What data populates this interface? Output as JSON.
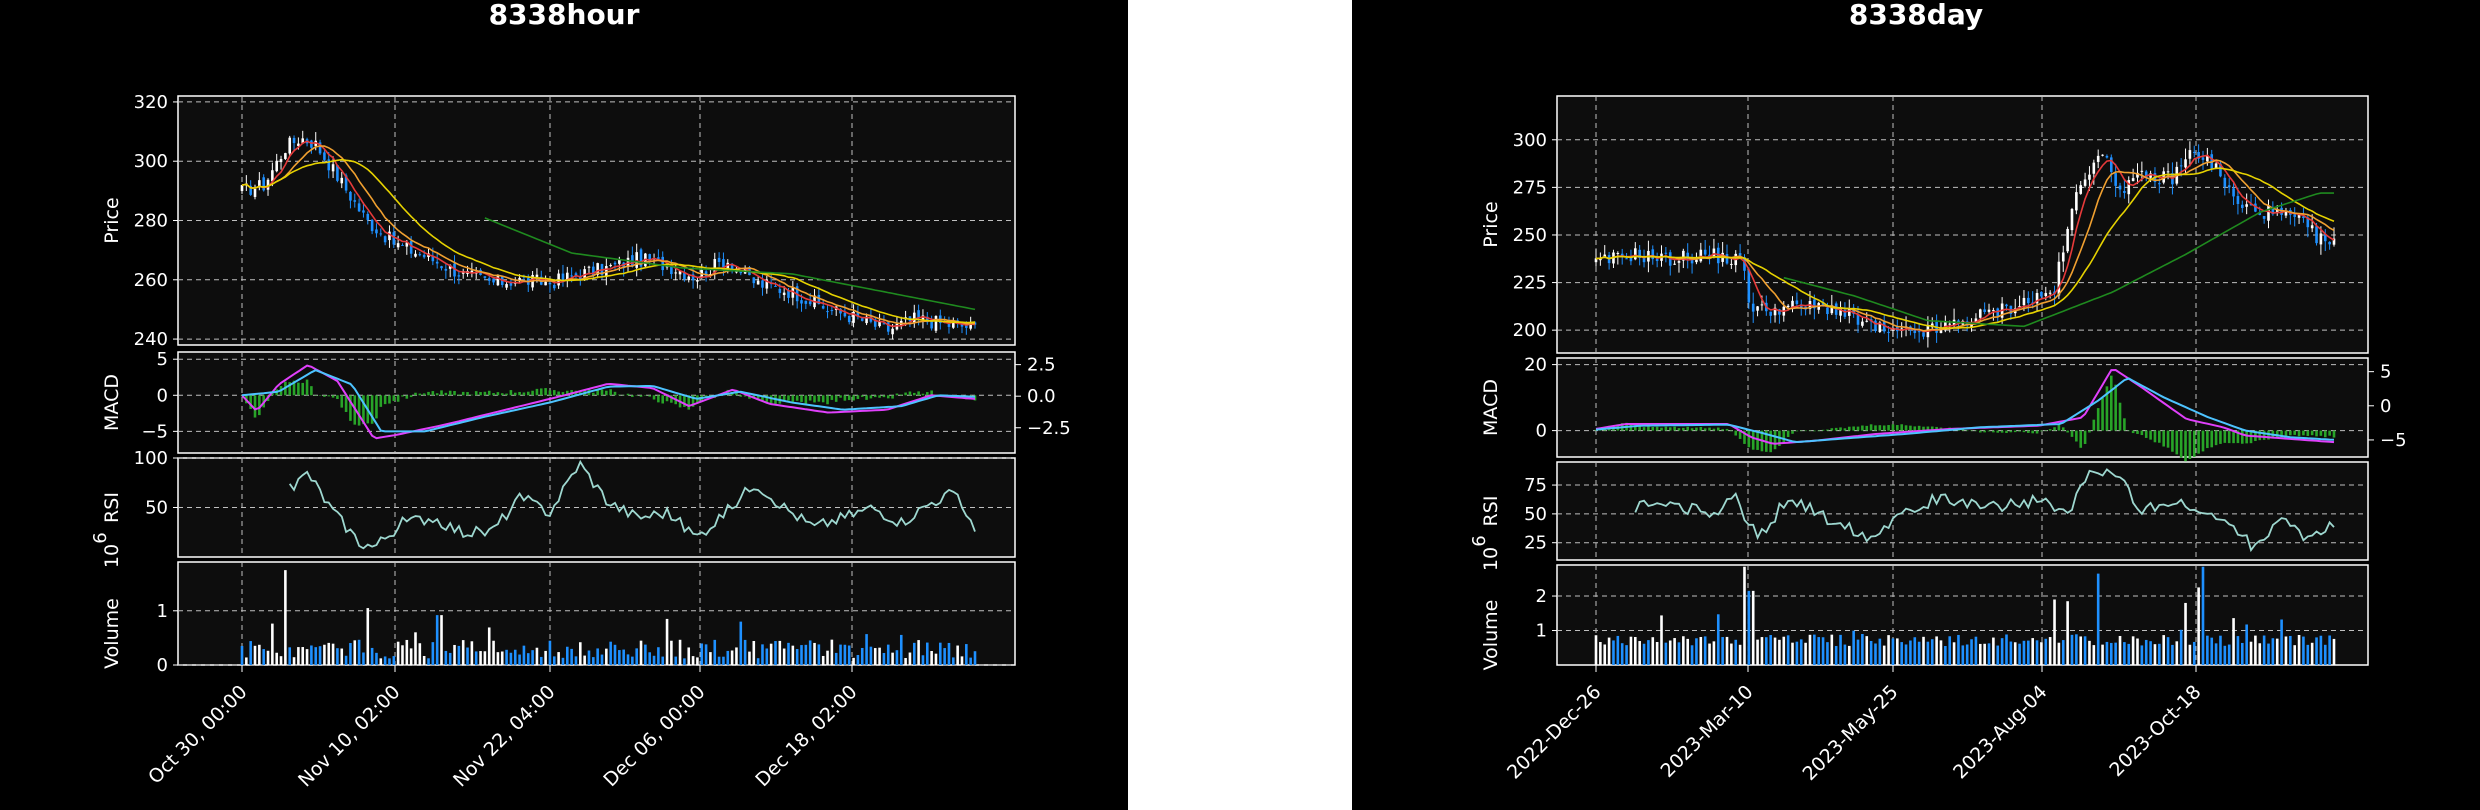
{
  "colors": {
    "page_bg": "#ffffff",
    "figure_bg": "#000000",
    "panel_bg": "#0d0d0d",
    "axis": "#ffffff",
    "grid": "#bfbfbf",
    "candle_up": "#ffffff",
    "candle_down": "#1e90ff",
    "ma_short": "#e63a3a",
    "ma_mid": "#f0a030",
    "ma_long": "#e6d200",
    "ma_trend": "#1f8a1f",
    "macd_line": "#e040fb",
    "signal_line": "#4dc3ff",
    "hist_pos": "#28a428",
    "rsi_line": "#9ed8d0"
  },
  "chart_data": [
    {
      "type": "candlestick",
      "title": "8338hour",
      "x_tick_labels": [
        "Oct 30, 00:00",
        "Nov 10, 02:00",
        "Nov 22, 04:00",
        "Dec 06, 00:00",
        "Dec 18, 02:00"
      ],
      "grid": true,
      "moving_averages": [
        "short",
        "mid",
        "long",
        "trend"
      ],
      "panels": {
        "price": {
          "ylabel": "Price",
          "ylim": [
            238,
            322
          ],
          "y_ticks": [
            "240",
            "260",
            "280",
            "300",
            "320"
          ],
          "close_anchors": [
            [
              0,
              290
            ],
            [
              0.03,
              292
            ],
            [
              0.06,
              305
            ],
            [
              0.08,
              308
            ],
            [
              0.1,
              306
            ],
            [
              0.13,
              295
            ],
            [
              0.17,
              280
            ],
            [
              0.21,
              272
            ],
            [
              0.25,
              268
            ],
            [
              0.3,
              262
            ],
            [
              0.34,
              259
            ],
            [
              0.38,
              260
            ],
            [
              0.42,
              259
            ],
            [
              0.46,
              262
            ],
            [
              0.5,
              264
            ],
            [
              0.54,
              267
            ],
            [
              0.58,
              265
            ],
            [
              0.62,
              261
            ],
            [
              0.66,
              267
            ],
            [
              0.7,
              259
            ],
            [
              0.75,
              256
            ],
            [
              0.8,
              250
            ],
            [
              0.84,
              247
            ],
            [
              0.88,
              243
            ],
            [
              0.92,
              247
            ],
            [
              0.96,
              245
            ],
            [
              1.0,
              244
            ]
          ],
          "trend_ma_anchors": [
            [
              0.33,
              281
            ],
            [
              0.45,
              269
            ],
            [
              0.6,
              264
            ],
            [
              0.75,
              262
            ],
            [
              1.0,
              250
            ]
          ]
        },
        "macd": {
          "ylabel": "MACD",
          "ylim": [
            -8,
            6
          ],
          "y_ticks_left": [
            "5",
            "0",
            "−5"
          ],
          "y_ticks_right": [
            "2.5",
            "0.0",
            "−2.5"
          ],
          "macd_anchors": [
            [
              0,
              0
            ],
            [
              0.02,
              -2.2
            ],
            [
              0.05,
              1.5
            ],
            [
              0.09,
              4.2
            ],
            [
              0.13,
              2
            ],
            [
              0.18,
              -6
            ],
            [
              0.21,
              -5.5
            ],
            [
              0.28,
              -4
            ],
            [
              0.36,
              -2
            ],
            [
              0.44,
              0
            ],
            [
              0.5,
              1.6
            ],
            [
              0.56,
              1.0
            ],
            [
              0.61,
              -1.5
            ],
            [
              0.67,
              0.8
            ],
            [
              0.72,
              -1.2
            ],
            [
              0.8,
              -2.4
            ],
            [
              0.88,
              -2
            ],
            [
              0.94,
              0
            ],
            [
              1.0,
              -0.5
            ]
          ],
          "signal_anchors": [
            [
              0,
              0
            ],
            [
              0.05,
              0.5
            ],
            [
              0.1,
              3.5
            ],
            [
              0.15,
              1.5
            ],
            [
              0.19,
              -5
            ],
            [
              0.25,
              -5
            ],
            [
              0.33,
              -3
            ],
            [
              0.42,
              -1
            ],
            [
              0.5,
              1.2
            ],
            [
              0.56,
              1.3
            ],
            [
              0.62,
              -0.5
            ],
            [
              0.68,
              0.5
            ],
            [
              0.75,
              -1
            ],
            [
              0.82,
              -2
            ],
            [
              0.9,
              -1.5
            ],
            [
              0.95,
              0
            ],
            [
              1.0,
              -0.2
            ]
          ],
          "histogram_amplitude": 4.5
        },
        "rsi": {
          "ylabel": "RSI",
          "ylim": [
            0,
            100
          ],
          "y_ticks": [
            "100",
            "50"
          ],
          "rsi_anchors": [
            [
              0.06,
              65
            ],
            [
              0.09,
              85
            ],
            [
              0.12,
              50
            ],
            [
              0.16,
              15
            ],
            [
              0.18,
              10
            ],
            [
              0.22,
              35
            ],
            [
              0.26,
              40
            ],
            [
              0.3,
              25
            ],
            [
              0.34,
              25
            ],
            [
              0.38,
              60
            ],
            [
              0.42,
              45
            ],
            [
              0.46,
              95
            ],
            [
              0.5,
              55
            ],
            [
              0.54,
              40
            ],
            [
              0.58,
              45
            ],
            [
              0.62,
              20
            ],
            [
              0.66,
              45
            ],
            [
              0.7,
              75
            ],
            [
              0.74,
              50
            ],
            [
              0.78,
              30
            ],
            [
              0.82,
              40
            ],
            [
              0.86,
              50
            ],
            [
              0.9,
              35
            ],
            [
              0.94,
              55
            ],
            [
              0.97,
              65
            ],
            [
              1.0,
              30
            ]
          ]
        },
        "volume": {
          "ylabel": "Volume",
          "exponent_label": "10",
          "exponent": "6",
          "ylim": [
            0,
            1.9
          ],
          "y_ticks": [
            "0",
            "1"
          ],
          "peaks": [
            [
              0.06,
              1.75
            ],
            [
              0.17,
              1.05
            ],
            [
              0.27,
              0.92
            ],
            [
              0.58,
              0.85
            ],
            [
              0.68,
              0.8
            ]
          ]
        }
      }
    },
    {
      "type": "candlestick",
      "title": "8338day",
      "x_tick_labels": [
        "2022-Dec-26",
        "2023-Mar-10",
        "2023-May-25",
        "2023-Aug-04",
        "2023-Oct-18"
      ],
      "grid": true,
      "moving_averages": [
        "short",
        "mid",
        "long",
        "trend"
      ],
      "panels": {
        "price": {
          "ylabel": "Price",
          "ylim": [
            188,
            323
          ],
          "y_ticks": [
            "200",
            "225",
            "250",
            "275",
            "300"
          ],
          "close_anchors": [
            [
              0,
              235
            ],
            [
              0.05,
              240
            ],
            [
              0.1,
              237
            ],
            [
              0.15,
              240
            ],
            [
              0.2,
              236
            ],
            [
              0.21,
              210
            ],
            [
              0.26,
              212
            ],
            [
              0.32,
              212
            ],
            [
              0.36,
              204
            ],
            [
              0.4,
              198
            ],
            [
              0.46,
              200
            ],
            [
              0.5,
              205
            ],
            [
              0.56,
              212
            ],
            [
              0.62,
              220
            ],
            [
              0.65,
              270
            ],
            [
              0.68,
              295
            ],
            [
              0.71,
              275
            ],
            [
              0.74,
              280
            ],
            [
              0.78,
              280
            ],
            [
              0.81,
              295
            ],
            [
              0.84,
              285
            ],
            [
              0.87,
              265
            ],
            [
              0.91,
              262
            ],
            [
              0.95,
              258
            ],
            [
              0.98,
              248
            ],
            [
              1.0,
              245
            ]
          ],
          "trend_ma_anchors": [
            [
              0.25,
              228
            ],
            [
              0.35,
              218
            ],
            [
              0.45,
              205
            ],
            [
              0.58,
              202
            ],
            [
              0.7,
              220
            ],
            [
              0.8,
              240
            ],
            [
              0.9,
              262
            ],
            [
              0.98,
              272
            ]
          ]
        },
        "macd": {
          "ylabel": "MACD",
          "ylim": [
            -8,
            22
          ],
          "y_ticks_left": [
            "20",
            "0"
          ],
          "y_ticks_right": [
            "5",
            "0",
            "−5"
          ],
          "macd_anchors": [
            [
              0,
              0.5
            ],
            [
              0.04,
              2
            ],
            [
              0.18,
              2
            ],
            [
              0.21,
              -2
            ],
            [
              0.24,
              -4
            ],
            [
              0.3,
              -3
            ],
            [
              0.38,
              -1
            ],
            [
              0.48,
              0.5
            ],
            [
              0.6,
              1.5
            ],
            [
              0.66,
              4
            ],
            [
              0.7,
              19
            ],
            [
              0.74,
              13
            ],
            [
              0.8,
              3.5
            ],
            [
              0.85,
              1
            ],
            [
              0.88,
              -1.5
            ],
            [
              0.94,
              -2.5
            ],
            [
              1.0,
              -3.5
            ]
          ],
          "signal_anchors": [
            [
              0,
              0.3
            ],
            [
              0.06,
              1.5
            ],
            [
              0.18,
              1.8
            ],
            [
              0.23,
              -1
            ],
            [
              0.27,
              -3.5
            ],
            [
              0.33,
              -2.5
            ],
            [
              0.42,
              -1
            ],
            [
              0.52,
              1
            ],
            [
              0.63,
              2
            ],
            [
              0.68,
              9
            ],
            [
              0.72,
              16
            ],
            [
              0.77,
              10
            ],
            [
              0.83,
              4
            ],
            [
              0.88,
              0
            ],
            [
              0.94,
              -2
            ],
            [
              1.0,
              -2.8
            ]
          ],
          "histogram_amplitude": 8
        },
        "rsi": {
          "ylabel": "RSI",
          "ylim": [
            10,
            95
          ],
          "y_ticks": [
            "75",
            "50",
            "25"
          ],
          "rsi_anchors": [
            [
              0.05,
              55
            ],
            [
              0.1,
              60
            ],
            [
              0.15,
              50
            ],
            [
              0.19,
              62
            ],
            [
              0.22,
              28
            ],
            [
              0.26,
              65
            ],
            [
              0.3,
              50
            ],
            [
              0.34,
              40
            ],
            [
              0.37,
              30
            ],
            [
              0.4,
              45
            ],
            [
              0.44,
              60
            ],
            [
              0.49,
              62
            ],
            [
              0.54,
              58
            ],
            [
              0.6,
              60
            ],
            [
              0.64,
              50
            ],
            [
              0.67,
              88
            ],
            [
              0.71,
              80
            ],
            [
              0.74,
              55
            ],
            [
              0.78,
              60
            ],
            [
              0.82,
              50
            ],
            [
              0.86,
              45
            ],
            [
              0.89,
              20
            ],
            [
              0.93,
              50
            ],
            [
              0.96,
              30
            ],
            [
              1.0,
              38
            ]
          ]
        },
        "volume": {
          "ylabel": "Volume",
          "exponent_label": "10",
          "exponent": "6",
          "ylim": [
            0,
            2.9
          ],
          "y_ticks": [
            "1",
            "2"
          ],
          "peaks": [
            [
              0.2,
              2.05
            ],
            [
              0.21,
              2.15
            ],
            [
              0.64,
              1.85
            ],
            [
              0.68,
              2.65
            ],
            [
              0.82,
              2.25
            ],
            [
              0.8,
              1.8
            ],
            [
              0.62,
              1.9
            ]
          ]
        }
      }
    }
  ]
}
